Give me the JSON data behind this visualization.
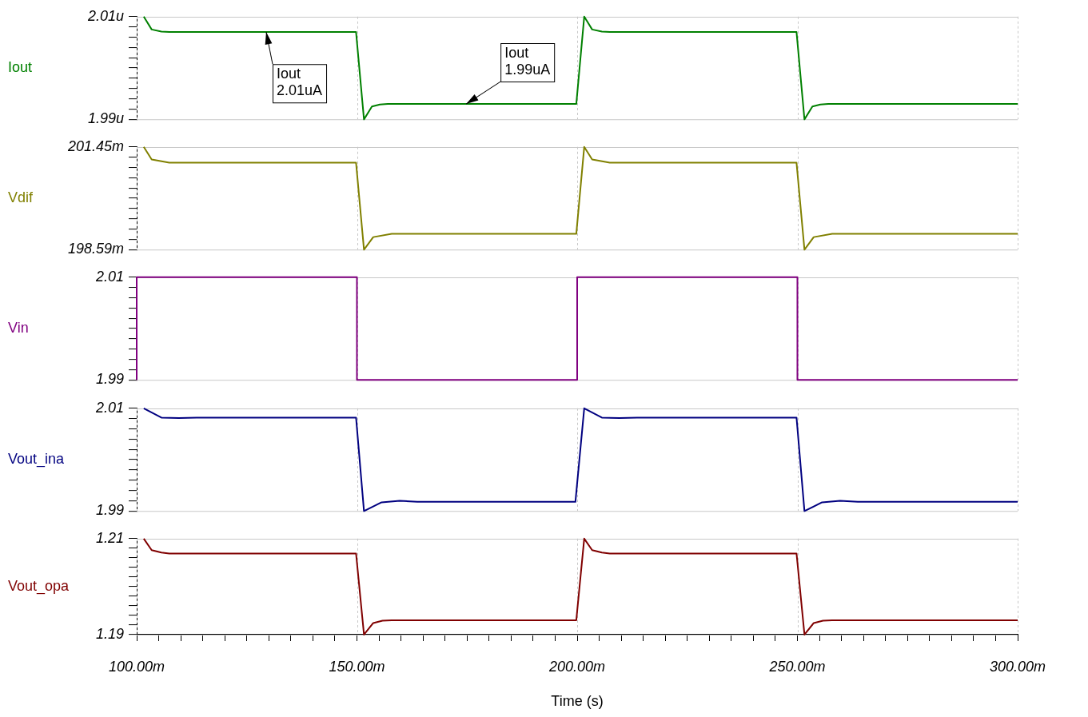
{
  "chart_data": [
    {
      "type": "line",
      "ylabel": "Iout",
      "xlim": [
        100,
        300
      ],
      "xticks": [
        {
          "value": 100,
          "label": null
        },
        {
          "value": 150,
          "label": null
        },
        {
          "value": 200,
          "label": null
        },
        {
          "value": 250,
          "label": null
        },
        {
          "value": 300,
          "label": null
        }
      ],
      "ylim": [
        1.99,
        2.01
      ],
      "yticks": [
        {
          "value": 1.99,
          "label": "1.99u"
        },
        {
          "value": 1.992,
          "label": null
        },
        {
          "value": 1.994,
          "label": null
        },
        {
          "value": 1.996,
          "label": null
        },
        {
          "value": 1.998,
          "label": null
        },
        {
          "value": 2.0,
          "label": null
        },
        {
          "value": 2.002,
          "label": null
        },
        {
          "value": 2.004,
          "label": null
        },
        {
          "value": 2.006,
          "label": null
        },
        {
          "value": 2.008,
          "label": null
        },
        {
          "value": 2.01,
          "label": "2.01u"
        }
      ],
      "grid": true,
      "tick_labels": "y",
      "x": [
        101.6,
        103.4,
        105.6,
        107.4,
        149.8,
        151.6,
        153.4,
        155.2,
        157,
        199.8,
        201.6,
        203.4,
        205.6,
        207.4,
        249.8,
        251.6,
        253.4,
        255.2,
        257,
        300
      ],
      "series": [
        {
          "color": "#008000",
          "values": [
            2.01,
            2.0075,
            2.0071,
            2.007,
            2.007,
            1.99,
            1.9925,
            1.9929,
            1.993,
            1.993,
            2.01,
            2.0075,
            2.0071,
            2.007,
            2.007,
            1.99,
            1.9925,
            1.9929,
            1.993,
            1.993
          ]
        }
      ],
      "annotations": [
        {
          "text": "Iout\n2.01uA",
          "x": 129.4,
          "y": 2.007
        },
        {
          "text": "Iout\n1.99uA",
          "x": 174.8,
          "y": 1.993
        }
      ]
    },
    {
      "type": "line",
      "ylabel": "Vdif",
      "xlim": [
        100,
        300
      ],
      "xticks": [
        {
          "value": 100,
          "label": null
        },
        {
          "value": 150,
          "label": null
        },
        {
          "value": 200,
          "label": null
        },
        {
          "value": 250,
          "label": null
        },
        {
          "value": 300,
          "label": null
        }
      ],
      "ylim": [
        198.59,
        201.45
      ],
      "yticks": [
        {
          "value": 198.59,
          "label": "198.59m"
        },
        {
          "value": 198.876,
          "label": null
        },
        {
          "value": 199.162,
          "label": null
        },
        {
          "value": 199.448,
          "label": null
        },
        {
          "value": 199.734,
          "label": null
        },
        {
          "value": 200.02,
          "label": null
        },
        {
          "value": 200.306,
          "label": null
        },
        {
          "value": 200.592,
          "label": null
        },
        {
          "value": 200.878,
          "label": null
        },
        {
          "value": 201.164,
          "label": null
        },
        {
          "value": 201.45,
          "label": "201.45m"
        }
      ],
      "grid": true,
      "tick_labels": "y",
      "x": [
        101.6,
        103.4,
        107.4,
        149.8,
        151.6,
        153.7,
        157.9,
        199.8,
        201.6,
        203.4,
        207.4,
        249.8,
        251.6,
        253.7,
        257.9,
        300
      ],
      "series": [
        {
          "color": "#808000",
          "values": [
            201.45,
            201.1,
            201.01,
            201.01,
            198.59,
            198.94,
            199.03,
            199.03,
            201.45,
            201.1,
            201.01,
            201.01,
            198.59,
            198.94,
            199.03,
            199.03
          ]
        }
      ]
    },
    {
      "type": "line",
      "ylabel": "Vin",
      "xlim": [
        100,
        300
      ],
      "xticks": [
        {
          "value": 100,
          "label": null
        },
        {
          "value": 150,
          "label": null
        },
        {
          "value": 200,
          "label": null
        },
        {
          "value": 250,
          "label": null
        },
        {
          "value": 300,
          "label": null
        }
      ],
      "ylim": [
        1.99,
        2.01
      ],
      "yticks": [
        1.99,
        {
          "value": 1.992,
          "label": null
        },
        {
          "value": 1.994,
          "label": null
        },
        {
          "value": 1.996,
          "label": null
        },
        {
          "value": 1.998,
          "label": null
        },
        {
          "value": 2.0,
          "label": null
        },
        {
          "value": 2.002,
          "label": null
        },
        {
          "value": 2.004,
          "label": null
        },
        {
          "value": 2.006,
          "label": null
        },
        {
          "value": 2.008,
          "label": null
        },
        2.01
      ],
      "grid": true,
      "tick_labels": "y",
      "x": [
        100,
        100,
        150,
        150,
        200,
        200,
        250,
        250,
        300
      ],
      "series": [
        {
          "color": "#800080",
          "values": [
            1.99,
            2.01,
            2.01,
            1.99,
            1.99,
            2.01,
            2.01,
            1.99,
            1.99
          ]
        }
      ]
    },
    {
      "type": "line",
      "ylabel": "Vout_ina",
      "xlim": [
        100,
        300
      ],
      "xticks": [
        {
          "value": 100,
          "label": null
        },
        {
          "value": 150,
          "label": null
        },
        {
          "value": 200,
          "label": null
        },
        {
          "value": 250,
          "label": null
        },
        {
          "value": 300,
          "label": null
        }
      ],
      "ylim": [
        1.99,
        2.01
      ],
      "yticks": [
        1.99,
        {
          "value": 1.992,
          "label": null
        },
        {
          "value": 1.994,
          "label": null
        },
        {
          "value": 1.996,
          "label": null
        },
        {
          "value": 1.998,
          "label": null
        },
        {
          "value": 2.0,
          "label": null
        },
        {
          "value": 2.002,
          "label": null
        },
        {
          "value": 2.004,
          "label": null
        },
        {
          "value": 2.006,
          "label": null
        },
        {
          "value": 2.008,
          "label": null
        },
        2.01
      ],
      "grid": true,
      "tick_labels": "y",
      "x": [
        101.6,
        105.6,
        109.6,
        113.6,
        149.8,
        151.6,
        155.6,
        159.7,
        163.7,
        199.6,
        201.6,
        205.6,
        209.6,
        213.6,
        249.8,
        251.6,
        255.6,
        259.7,
        263.7,
        300
      ],
      "series": [
        {
          "color": "#000080",
          "values": [
            2.01,
            2.0082,
            2.0081,
            2.0082,
            2.0082,
            1.99,
            1.9917,
            1.992,
            1.9918,
            1.9918,
            2.01,
            2.0082,
            2.0081,
            2.0082,
            2.0082,
            1.99,
            1.9917,
            1.992,
            1.9918,
            1.9918
          ]
        }
      ]
    },
    {
      "type": "line",
      "ylabel": "Vout_opa",
      "xlabel": "Time (s)",
      "xlim": [
        100,
        300
      ],
      "xticks": [
        {
          "value": 100,
          "label": "100.00m"
        },
        {
          "value": 105,
          "label": null
        },
        {
          "value": 110,
          "label": null
        },
        {
          "value": 115,
          "label": null
        },
        {
          "value": 120,
          "label": null
        },
        {
          "value": 125,
          "label": null
        },
        {
          "value": 130,
          "label": null
        },
        {
          "value": 135,
          "label": null
        },
        {
          "value": 140,
          "label": null
        },
        {
          "value": 145,
          "label": null
        },
        {
          "value": 150,
          "label": "150.00m"
        },
        {
          "value": 155,
          "label": null
        },
        {
          "value": 160,
          "label": null
        },
        {
          "value": 165,
          "label": null
        },
        {
          "value": 170,
          "label": null
        },
        {
          "value": 175,
          "label": null
        },
        {
          "value": 180,
          "label": null
        },
        {
          "value": 185,
          "label": null
        },
        {
          "value": 190,
          "label": null
        },
        {
          "value": 195,
          "label": null
        },
        {
          "value": 200,
          "label": "200.00m"
        },
        {
          "value": 205,
          "label": null
        },
        {
          "value": 210,
          "label": null
        },
        {
          "value": 215,
          "label": null
        },
        {
          "value": 220,
          "label": null
        },
        {
          "value": 225,
          "label": null
        },
        {
          "value": 230,
          "label": null
        },
        {
          "value": 235,
          "label": null
        },
        {
          "value": 240,
          "label": null
        },
        {
          "value": 245,
          "label": null
        },
        {
          "value": 250,
          "label": "250.00m"
        },
        {
          "value": 255,
          "label": null
        },
        {
          "value": 260,
          "label": null
        },
        {
          "value": 265,
          "label": null
        },
        {
          "value": 270,
          "label": null
        },
        {
          "value": 275,
          "label": null
        },
        {
          "value": 280,
          "label": null
        },
        {
          "value": 285,
          "label": null
        },
        {
          "value": 290,
          "label": null
        },
        {
          "value": 295,
          "label": null
        },
        {
          "value": 300,
          "label": "300.00m"
        }
      ],
      "ylim": [
        1.19,
        1.21
      ],
      "yticks": [
        1.19,
        {
          "value": 1.192,
          "label": null
        },
        {
          "value": 1.194,
          "label": null
        },
        {
          "value": 1.196,
          "label": null
        },
        {
          "value": 1.198,
          "label": null
        },
        {
          "value": 1.2,
          "label": null
        },
        {
          "value": 1.202,
          "label": null
        },
        {
          "value": 1.204,
          "label": null
        },
        {
          "value": 1.206,
          "label": null
        },
        {
          "value": 1.208,
          "label": null
        },
        1.21
      ],
      "grid": true,
      "x": [
        101.6,
        103.4,
        105.6,
        107.4,
        149.8,
        151.6,
        153.7,
        155.8,
        157.9,
        199.8,
        201.6,
        203.4,
        205.6,
        207.4,
        249.8,
        251.6,
        253.7,
        255.8,
        257.9,
        300
      ],
      "series": [
        {
          "color": "#800000",
          "values": [
            1.21,
            1.2076,
            1.2071,
            1.2069,
            1.2069,
            1.19,
            1.1924,
            1.1929,
            1.193,
            1.193,
            1.21,
            1.2076,
            1.2071,
            1.2069,
            1.2069,
            1.19,
            1.1924,
            1.1929,
            1.193,
            1.193
          ]
        }
      ]
    }
  ]
}
